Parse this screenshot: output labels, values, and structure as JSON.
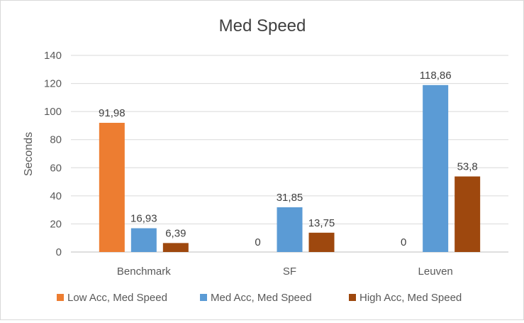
{
  "chart_data": {
    "type": "bar",
    "title": "Med Speed",
    "ylabel": "Seconds",
    "xlabel": "",
    "ylim": [
      0,
      140
    ],
    "yticks": [
      0,
      20,
      40,
      60,
      80,
      100,
      120,
      140
    ],
    "grid": true,
    "legend": "bottom",
    "categories": [
      "Benchmark",
      "SF",
      "Leuven"
    ],
    "series": [
      {
        "name": "Low Acc, Med Speed",
        "color": "#ed7d31",
        "values": [
          91.98,
          0,
          0
        ],
        "labels": [
          "91,98",
          "0",
          "0"
        ]
      },
      {
        "name": "Med Acc, Med Speed",
        "color": "#5b9bd5",
        "values": [
          16.93,
          31.85,
          118.86
        ],
        "labels": [
          "16,93",
          "31,85",
          "118,86"
        ]
      },
      {
        "name": "High Acc, Med Speed",
        "color": "#9e480e",
        "values": [
          6.39,
          13.75,
          53.8
        ],
        "labels": [
          "6,39",
          "13,75",
          "53,8"
        ]
      }
    ]
  }
}
